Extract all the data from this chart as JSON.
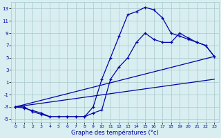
{
  "xlabel": "Graphe des températures (°c)",
  "background_color": "#d8eef0",
  "grid_color": "#a8c8cc",
  "line_color": "#0000aa",
  "xlim": [
    -0.5,
    23.5
  ],
  "ylim": [
    -5.5,
    14.0
  ],
  "xticks": [
    0,
    1,
    2,
    3,
    4,
    5,
    6,
    7,
    8,
    9,
    10,
    11,
    12,
    13,
    14,
    15,
    16,
    17,
    18,
    19,
    20,
    21,
    22,
    23
  ],
  "yticks": [
    -5,
    -3,
    -1,
    1,
    3,
    5,
    7,
    9,
    11,
    13
  ],
  "line1_x": [
    0,
    1,
    2,
    3,
    4,
    5,
    6,
    7,
    8,
    9,
    10,
    11,
    12,
    13,
    14,
    15,
    16,
    17,
    18,
    19,
    20,
    21,
    22,
    23
  ],
  "line1_y": [
    -3,
    -3.2,
    -3.6,
    -4.0,
    -4.6,
    -4.6,
    -4.6,
    -4.6,
    -4.6,
    -3.0,
    1.5,
    5.0,
    8.5,
    12.0,
    12.5,
    13.2,
    12.8,
    11.5,
    9.0,
    8.5,
    8.0,
    7.5,
    7.0,
    5.2
  ],
  "line2_x": [
    0,
    1,
    2,
    3,
    4,
    5,
    6,
    7,
    8,
    9,
    10,
    11,
    12,
    13,
    14,
    15,
    16,
    17,
    18,
    19,
    20,
    21,
    22,
    23
  ],
  "line2_y": [
    -3,
    -3,
    -3.8,
    -4.2,
    -4.6,
    -4.6,
    -4.6,
    -4.6,
    -4.6,
    -4.0,
    -3.5,
    1.5,
    3.5,
    5.0,
    7.5,
    9.0,
    8.0,
    7.5,
    7.5,
    9.0,
    8.2,
    7.5,
    7.0,
    5.2
  ],
  "line3_x": [
    0,
    23
  ],
  "line3_y": [
    -3.0,
    5.2
  ],
  "line4_x": [
    0,
    23
  ],
  "line4_y": [
    -3.0,
    1.5
  ],
  "figsize": [
    3.2,
    2.0
  ],
  "dpi": 100
}
